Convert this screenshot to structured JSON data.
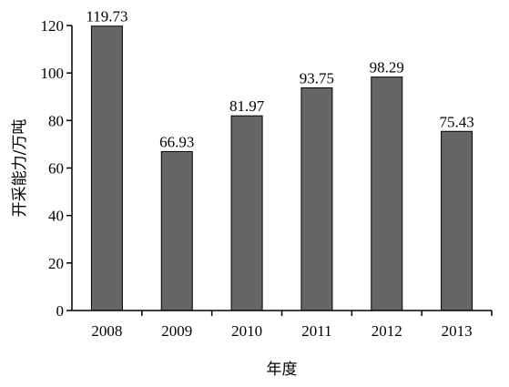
{
  "chart_data": {
    "type": "bar",
    "categories": [
      "2008",
      "2009",
      "2010",
      "2011",
      "2012",
      "2013"
    ],
    "values": [
      119.73,
      66.93,
      81.97,
      93.75,
      98.29,
      75.43
    ],
    "value_labels": [
      "119.73",
      "66.93",
      "81.97",
      "93.75",
      "98.29",
      "75.43"
    ],
    "title": "",
    "xlabel": "年度",
    "ylabel": "开采能力/万吨",
    "ylim": [
      0,
      120
    ],
    "yticks": [
      0,
      20,
      40,
      60,
      80,
      100,
      120
    ],
    "grid": false,
    "legend": "none",
    "bar_color": "#666666",
    "bar_edge_color": "#000000"
  }
}
